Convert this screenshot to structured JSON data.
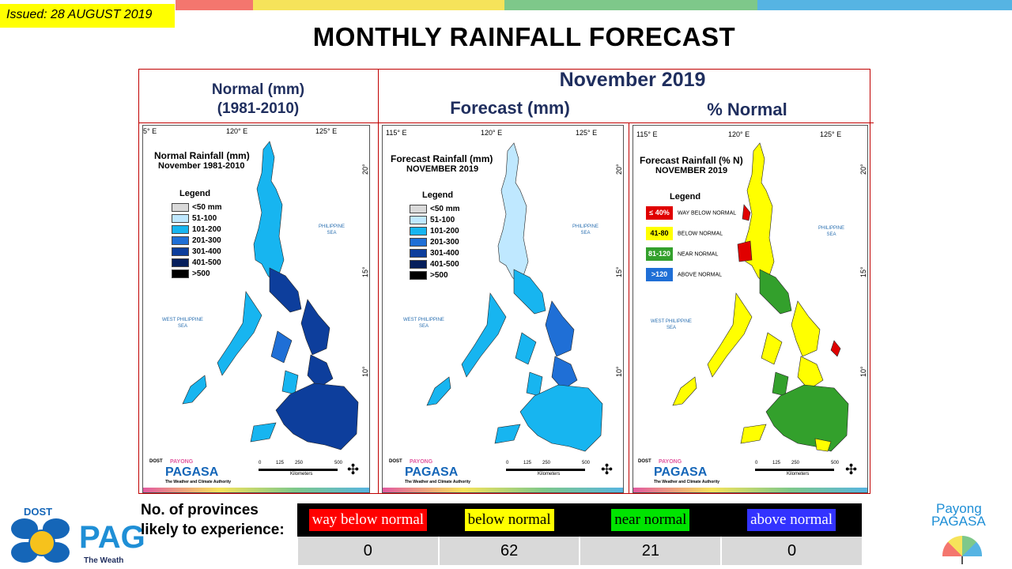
{
  "issued": "Issued: 28 AUGUST 2019",
  "title": "MONTHLY RAINFALL FORECAST",
  "headers": {
    "normal_line1": "Normal (mm)",
    "normal_line2": "(1981-2010)",
    "month": "November 2019",
    "forecast": "Forecast (mm)",
    "pct_normal": "% Normal"
  },
  "maps": [
    {
      "title1": "Normal Rainfall (mm)",
      "title2": "November 1981-2010",
      "axis_top": [
        "5° E",
        "120° E",
        "125° E"
      ],
      "axis_right": [
        "20° N",
        "15° N",
        "10° N"
      ],
      "legend_title": "Legend",
      "legend": [
        {
          "label": "<50 mm",
          "color": "#d9d9d9"
        },
        {
          "label": "51-100",
          "color": "#bfe8ff"
        },
        {
          "label": "101-200",
          "color": "#17b5f0"
        },
        {
          "label": "201-300",
          "color": "#1f6fd6"
        },
        {
          "label": "301-400",
          "color": "#0d3e9c"
        },
        {
          "label": "401-500",
          "color": "#061f5c"
        },
        {
          "label": ">500",
          "color": "#000000"
        }
      ]
    },
    {
      "title1": "Forecast Rainfall (mm)",
      "title2": "NOVEMBER 2019",
      "axis_top": [
        "115° E",
        "120° E",
        "125° E"
      ],
      "axis_right": [
        "20° N",
        "15° N",
        "10° N"
      ],
      "legend_title": "Legend",
      "legend": [
        {
          "label": "<50 mm",
          "color": "#d9d9d9"
        },
        {
          "label": "51-100",
          "color": "#bfe8ff"
        },
        {
          "label": "101-200",
          "color": "#17b5f0"
        },
        {
          "label": "201-300",
          "color": "#1f6fd6"
        },
        {
          "label": "301-400",
          "color": "#0d3e9c"
        },
        {
          "label": "401-500",
          "color": "#061f5c"
        },
        {
          "label": ">500",
          "color": "#000000"
        }
      ]
    },
    {
      "title1": "Forecast Rainfall (% N)",
      "title2": "NOVEMBER 2019",
      "axis_top": [
        "115° E",
        "120° E",
        "125° E"
      ],
      "axis_right": [
        "20° N",
        "15° N",
        "10° N"
      ],
      "legend_title": "Legend",
      "legend": [
        {
          "box": "≤ 40%",
          "label": "WAY BELOW NORMAL",
          "color": "#e00000",
          "text_color": "#ffffff"
        },
        {
          "box": "41-80",
          "label": "BELOW NORMAL",
          "color": "#ffff00",
          "text_color": "#000000"
        },
        {
          "box": "81-120",
          "label": "NEAR NORMAL",
          "color": "#33a02c",
          "text_color": "#ffffff"
        },
        {
          "box": ">120",
          "label": "ABOVE NORMAL",
          "color": "#1f6fd6",
          "text_color": "#ffffff"
        }
      ]
    }
  ],
  "sea_labels": {
    "philippine": "PHILIPPINE\nSEA",
    "west": "WEST PHILIPPINE\nSEA"
  },
  "scale": {
    "ticks": [
      "0",
      "125",
      "250",
      "500"
    ],
    "unit": "Kilometers"
  },
  "map_logo": {
    "dost": "DOST",
    "payong": "PAYONG",
    "pagasa": "PAGASA",
    "tagline": "The Weather and Climate Authority"
  },
  "bottom": {
    "question": "No. of provinces likely to experience:",
    "categories": [
      {
        "label": "way below normal",
        "bg": "#ff0000",
        "fg": "#ffffff",
        "count": "0"
      },
      {
        "label": "below normal",
        "bg": "#ffff00",
        "fg": "#000000",
        "count": "62"
      },
      {
        "label": "near normal",
        "bg": "#00e400",
        "fg": "#000000",
        "count": "21"
      },
      {
        "label": "above normal",
        "bg": "#3333ff",
        "fg": "#ffffff",
        "count": "0"
      }
    ]
  },
  "logos": {
    "dost": "DOST",
    "pag_text": "PAG",
    "pag_tagline": "The Weath",
    "payong_line1": "Payong",
    "payong_line2": "PAGASA"
  },
  "colors": {
    "top_red": "#f4766e",
    "top_yellow": "#f6e35a",
    "top_green": "#7ec88a",
    "top_blue": "#56b4e3",
    "frame_red": "#c00000",
    "header_navy": "#1f2e5e"
  }
}
